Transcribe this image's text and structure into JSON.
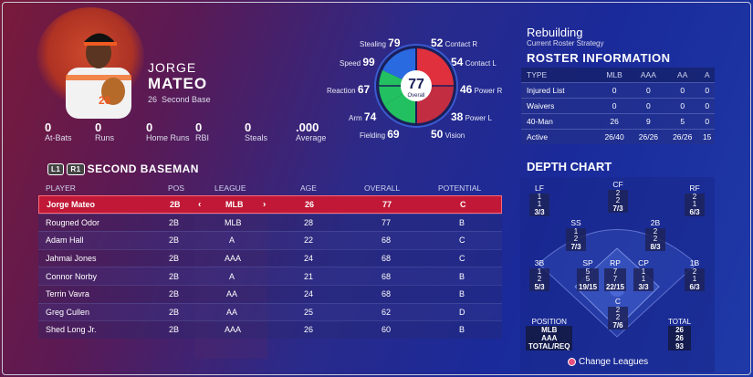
{
  "player": {
    "first": "JORGE",
    "last": "MATEO",
    "number": "26",
    "position": "Second Base"
  },
  "stats": [
    {
      "value": "0",
      "label": "At-Bats"
    },
    {
      "value": "0",
      "label": "Runs"
    },
    {
      "value": "0",
      "label": "Home Runs"
    },
    {
      "value": "0",
      "label": "RBI"
    },
    {
      "value": "0",
      "label": "Steals"
    },
    {
      "value": ".000",
      "label": "Average"
    }
  ],
  "attributes": {
    "stealing": {
      "label": "Stealing",
      "value": "79"
    },
    "speed": {
      "label": "Speed",
      "value": "99"
    },
    "reaction": {
      "label": "Reaction",
      "value": "67"
    },
    "arm": {
      "label": "Arm",
      "value": "74"
    },
    "fielding": {
      "label": "Fielding",
      "value": "69"
    },
    "contact_r": {
      "label": "Contact R",
      "value": "52"
    },
    "contact_l": {
      "label": "Contact L",
      "value": "54"
    },
    "power_r": {
      "label": "Power R",
      "value": "46"
    },
    "power_l": {
      "label": "Power L",
      "value": "38"
    },
    "vision": {
      "label": "Vision",
      "value": "50"
    }
  },
  "overall": {
    "value": "77",
    "label": "Overall"
  },
  "colors": {
    "speed": "#2a6ae0",
    "defense": "#22c060",
    "hitting": "#e0303e",
    "selected": "#c01836"
  },
  "strategy": {
    "title": "Rebuilding",
    "subtitle": "Current Roster Strategy"
  },
  "roster": {
    "title": "ROSTER INFORMATION",
    "headers": [
      "TYPE",
      "MLB",
      "AAA",
      "AA",
      "A"
    ],
    "rows": [
      [
        "Injured List",
        "0",
        "0",
        "0",
        "0"
      ],
      [
        "Waivers",
        "0",
        "0",
        "0",
        "0"
      ],
      [
        "40-Man",
        "26",
        "9",
        "5",
        "0"
      ],
      [
        "Active",
        "26/40",
        "26/26",
        "26/26",
        "15"
      ]
    ]
  },
  "section": {
    "btn1": "L1",
    "btn2": "R1",
    "title": "SECOND BASEMAN"
  },
  "list": {
    "headers": {
      "player": "PLAYER",
      "pos": "POS",
      "league": "LEAGUE",
      "age": "AGE",
      "overall": "OVERALL",
      "potential": "POTENTIAL"
    },
    "rows": [
      {
        "name": "Jorge Mateo",
        "pos": "2B",
        "league": "MLB",
        "age": "26",
        "overall": "77",
        "potential": "C"
      },
      {
        "name": "Rougned Odor",
        "pos": "2B",
        "league": "MLB",
        "age": "28",
        "overall": "77",
        "potential": "B"
      },
      {
        "name": "Adam Hall",
        "pos": "2B",
        "league": "A",
        "age": "22",
        "overall": "68",
        "potential": "C"
      },
      {
        "name": "Jahmai Jones",
        "pos": "2B",
        "league": "AAA",
        "age": "24",
        "overall": "68",
        "potential": "C"
      },
      {
        "name": "Connor Norby",
        "pos": "2B",
        "league": "A",
        "age": "21",
        "overall": "68",
        "potential": "B"
      },
      {
        "name": "Terrin Vavra",
        "pos": "2B",
        "league": "AA",
        "age": "24",
        "overall": "68",
        "potential": "B"
      },
      {
        "name": "Greg Cullen",
        "pos": "2B",
        "league": "AA",
        "age": "25",
        "overall": "62",
        "potential": "D"
      },
      {
        "name": "Shed Long Jr.",
        "pos": "2B",
        "league": "AAA",
        "age": "26",
        "overall": "60",
        "potential": "B"
      }
    ]
  },
  "depth": {
    "title": "DEPTH CHART",
    "positions": [
      {
        "id": "lf",
        "label": "LF",
        "vals": [
          "1",
          "1",
          "3/3"
        ]
      },
      {
        "id": "cf",
        "label": "CF",
        "vals": [
          "2",
          "2",
          "7/3"
        ]
      },
      {
        "id": "rf",
        "label": "RF",
        "vals": [
          "2",
          "1",
          "6/3"
        ]
      },
      {
        "id": "ss",
        "label": "SS",
        "vals": [
          "1",
          "2",
          "7/3"
        ]
      },
      {
        "id": "2b",
        "label": "2B",
        "vals": [
          "2",
          "2",
          "8/3"
        ]
      },
      {
        "id": "3b",
        "label": "3B",
        "vals": [
          "1",
          "2",
          "5/3"
        ]
      },
      {
        "id": "sp",
        "label": "SP",
        "vals": [
          "5",
          "5",
          "19/15"
        ]
      },
      {
        "id": "rp",
        "label": "RP",
        "vals": [
          "7",
          "7",
          "22/15"
        ]
      },
      {
        "id": "cp",
        "label": "CP",
        "vals": [
          "1",
          "1",
          "3/3"
        ]
      },
      {
        "id": "1b",
        "label": "1B",
        "vals": [
          "2",
          "1",
          "6/3"
        ]
      },
      {
        "id": "c",
        "label": "C",
        "vals": [
          "2",
          "2",
          "7/6"
        ]
      }
    ],
    "legend": {
      "title": "POSITION",
      "rows": [
        "MLB",
        "AAA",
        "TOTAL/REQ"
      ]
    },
    "total": {
      "title": "TOTAL",
      "rows": [
        "26",
        "26",
        "93"
      ]
    },
    "change_label": "Change Leagues"
  }
}
